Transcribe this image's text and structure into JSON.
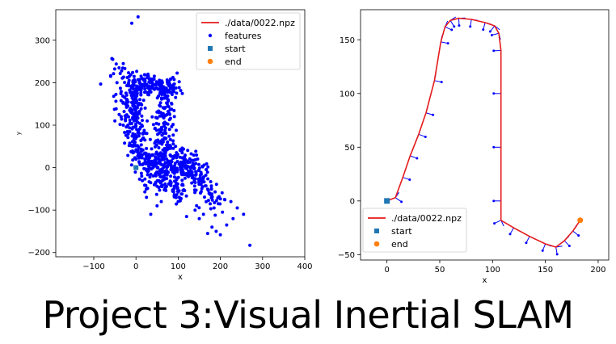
{
  "page_title": "Project 3:Visual Inertial SLAM",
  "chart_data": [
    {
      "type": "scatter",
      "xlabel": "x",
      "ylabel": "y",
      "xlim": [
        -190,
        400
      ],
      "ylim": [
        -210,
        372
      ],
      "xticks": [
        -100,
        0,
        100,
        200,
        300,
        400
      ],
      "yticks": [
        -200,
        -100,
        0,
        100,
        200,
        300
      ],
      "xtick_labels": [
        "−100",
        "0",
        "100",
        "200",
        "300",
        "400"
      ],
      "ytick_labels": [
        "−200",
        "−100",
        "0",
        "100",
        "200",
        "300"
      ],
      "grid": false,
      "legend_position": "top-right",
      "legend": [
        {
          "label": "./data/0022.npz",
          "kind": "line",
          "color": "#e41a1c"
        },
        {
          "label": "features",
          "kind": "dot",
          "color": "#0000ff"
        },
        {
          "label": "start",
          "kind": "square",
          "color": "#1f77b4"
        },
        {
          "label": "end",
          "kind": "circle",
          "color": "#ff7f0e"
        }
      ],
      "feature_color": "#0000ff",
      "features": [
        [
          -10,
          340
        ],
        [
          5,
          355
        ],
        [
          270,
          -183
        ],
        [
          190,
          -150
        ],
        [
          215,
          -135
        ],
        [
          200,
          -158
        ],
        [
          -55,
          255
        ],
        [
          -60,
          215
        ],
        [
          -50,
          110
        ],
        [
          230,
          -120
        ],
        [
          240,
          -95
        ],
        [
          -40,
          235
        ],
        [
          -45,
          200
        ],
        [
          170,
          -155
        ],
        [
          255,
          -110
        ],
        [
          -30,
          245
        ],
        [
          180,
          -140
        ],
        [
          205,
          -105
        ],
        [
          -25,
          150
        ],
        [
          -35,
          120
        ],
        [
          -30,
          100
        ],
        [
          195,
          -85
        ],
        [
          210,
          -75
        ],
        [
          35,
          -110
        ],
        [
          50,
          -90
        ],
        [
          150,
          -120
        ],
        [
          120,
          -115
        ],
        [
          140,
          -100
        ],
        [
          225,
          -80
        ],
        [
          160,
          -110
        ],
        [
          185,
          -95
        ],
        [
          60,
          -80
        ],
        [
          25,
          -70
        ],
        [
          100,
          -80
        ],
        [
          -15,
          135
        ],
        [
          -20,
          85
        ],
        [
          -5,
          60
        ],
        [
          5,
          40
        ],
        [
          15,
          30
        ],
        [
          0,
          20
        ]
      ],
      "feature_clusters": [
        {
          "a": [
            -10,
            200
          ],
          "b": [
            5,
            25
          ],
          "count": 170,
          "spread": 14
        },
        {
          "a": [
            0,
            200
          ],
          "b": [
            95,
            185
          ],
          "count": 150,
          "spread": 12
        },
        {
          "a": [
            70,
            185
          ],
          "b": [
            60,
            25
          ],
          "count": 150,
          "spread": 11
        },
        {
          "a": [
            10,
            20
          ],
          "b": [
            125,
            -10
          ],
          "count": 200,
          "spread": 15
        },
        {
          "a": [
            100,
            40
          ],
          "b": [
            190,
            -80
          ],
          "count": 140,
          "spread": 16
        },
        {
          "a": [
            -40,
            230
          ],
          "b": [
            -5,
            110
          ],
          "count": 70,
          "spread": 16
        },
        {
          "a": [
            20,
            -20
          ],
          "b": [
            110,
            -60
          ],
          "count": 90,
          "spread": 12
        }
      ],
      "start": [
        0,
        0
      ],
      "end": [
        0,
        0
      ]
    },
    {
      "type": "line",
      "xlabel": "x",
      "ylabel": "",
      "xlim": [
        -25,
        210
      ],
      "ylim": [
        -55,
        178
      ],
      "xticks": [
        0,
        50,
        100,
        150,
        200
      ],
      "yticks": [
        -50,
        0,
        50,
        100,
        150
      ],
      "xtick_labels": [
        "0",
        "50",
        "100",
        "150",
        "200"
      ],
      "ytick_labels": [
        "−50",
        "0",
        "50",
        "100",
        "150"
      ],
      "grid": false,
      "legend_position": "bottom-left",
      "legend": [
        {
          "label": "./data/0022.npz",
          "kind": "line",
          "color": "#e41a1c"
        },
        {
          "label": "start",
          "kind": "square",
          "color": "#1f77b4"
        },
        {
          "label": "end",
          "kind": "circle",
          "color": "#ff7f0e"
        }
      ],
      "trajectory_color": "#e41a1c",
      "trajectory": [
        [
          0,
          0
        ],
        [
          8,
          3
        ],
        [
          15,
          22
        ],
        [
          22,
          42
        ],
        [
          30,
          62
        ],
        [
          37,
          82
        ],
        [
          45,
          112
        ],
        [
          51,
          148
        ],
        [
          55,
          162
        ],
        [
          60,
          168
        ],
        [
          68,
          170
        ],
        [
          80,
          169
        ],
        [
          93,
          166
        ],
        [
          102,
          163
        ],
        [
          106,
          156
        ],
        [
          108,
          140
        ],
        [
          108,
          100
        ],
        [
          108,
          50
        ],
        [
          108,
          0
        ],
        [
          108,
          -18
        ],
        [
          120,
          -25
        ],
        [
          135,
          -33
        ],
        [
          150,
          -40
        ],
        [
          160,
          -43
        ],
        [
          168,
          -37
        ],
        [
          176,
          -28
        ],
        [
          183,
          -18
        ]
      ],
      "heading_arrows_color": "#0000ff",
      "start": [
        0,
        0
      ],
      "end": [
        183,
        -18
      ]
    }
  ]
}
